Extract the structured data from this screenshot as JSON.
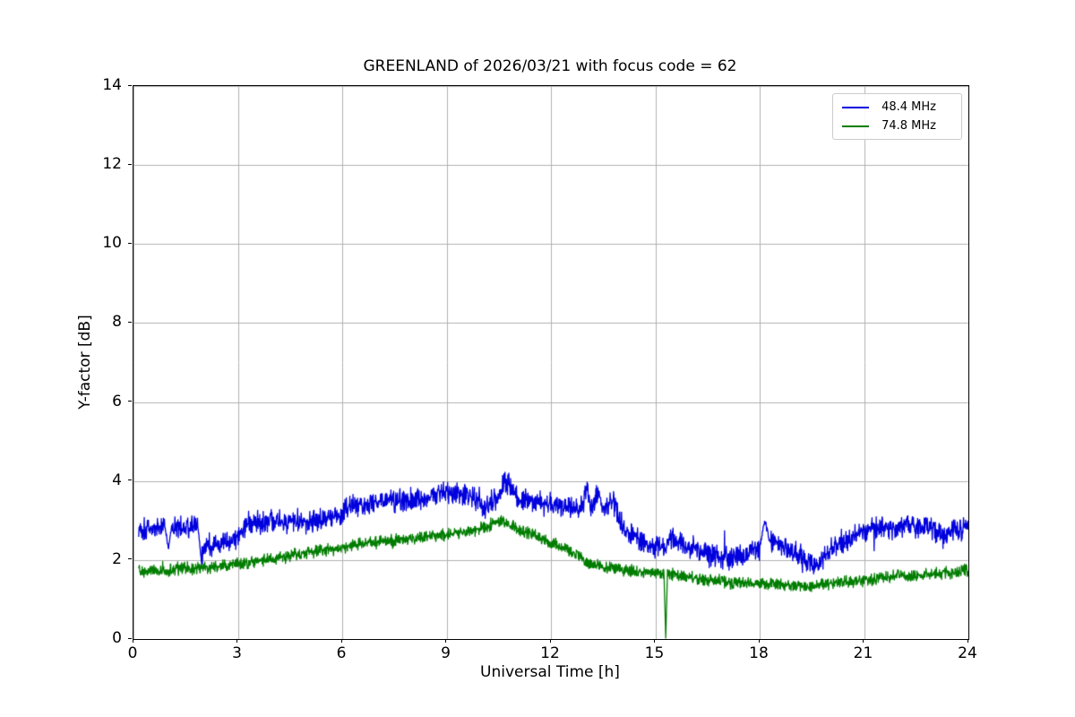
{
  "chart_data": {
    "type": "line",
    "title": "GREENLAND of 2026/03/21 with focus code = 62",
    "xlabel": "Universal Time [h]",
    "ylabel": "Y-factor [dB]",
    "xlim": [
      0,
      24
    ],
    "ylim": [
      0,
      14
    ],
    "xticks": [
      0,
      3,
      6,
      9,
      12,
      15,
      18,
      21,
      24
    ],
    "yticks": [
      0,
      2,
      4,
      6,
      8,
      10,
      12,
      14
    ],
    "grid": true,
    "grid_color": "#b0b0b0",
    "legend_position": "upper right",
    "series": [
      {
        "name": "48.4 MHz",
        "color": "#0000dd",
        "noise_amplitude": 0.17,
        "anchors": [
          [
            0.15,
            2.8
          ],
          [
            0.5,
            2.8
          ],
          [
            0.9,
            2.85
          ],
          [
            1.0,
            2.3
          ],
          [
            1.1,
            2.85
          ],
          [
            1.5,
            2.8
          ],
          [
            1.85,
            2.85
          ],
          [
            1.95,
            2.0
          ],
          [
            2.05,
            2.4
          ],
          [
            2.3,
            2.35
          ],
          [
            2.6,
            2.4
          ],
          [
            2.9,
            2.55
          ],
          [
            3.1,
            2.7
          ],
          [
            3.3,
            2.95
          ],
          [
            3.5,
            3.0
          ],
          [
            3.7,
            2.9
          ],
          [
            3.9,
            3.0
          ],
          [
            4.2,
            2.95
          ],
          [
            4.5,
            3.0
          ],
          [
            4.8,
            3.05
          ],
          [
            5.1,
            3.0
          ],
          [
            5.4,
            3.05
          ],
          [
            5.7,
            3.1
          ],
          [
            5.95,
            3.1
          ],
          [
            6.05,
            3.35
          ],
          [
            6.4,
            3.4
          ],
          [
            6.8,
            3.45
          ],
          [
            7.2,
            3.5
          ],
          [
            7.6,
            3.5
          ],
          [
            8.0,
            3.55
          ],
          [
            8.4,
            3.6
          ],
          [
            8.7,
            3.7
          ],
          [
            9.0,
            3.75
          ],
          [
            9.3,
            3.7
          ],
          [
            9.6,
            3.65
          ],
          [
            9.9,
            3.5
          ],
          [
            10.1,
            3.3
          ],
          [
            10.3,
            3.5
          ],
          [
            10.5,
            3.6
          ],
          [
            10.65,
            4.0
          ],
          [
            10.8,
            3.95
          ],
          [
            11.0,
            3.6
          ],
          [
            11.3,
            3.5
          ],
          [
            11.7,
            3.45
          ],
          [
            12.0,
            3.4
          ],
          [
            12.4,
            3.35
          ],
          [
            12.8,
            3.3
          ],
          [
            13.05,
            3.75
          ],
          [
            13.15,
            3.3
          ],
          [
            13.35,
            3.65
          ],
          [
            13.5,
            3.35
          ],
          [
            13.75,
            3.55
          ],
          [
            13.9,
            3.2
          ],
          [
            14.1,
            2.8
          ],
          [
            14.4,
            2.6
          ],
          [
            14.7,
            2.45
          ],
          [
            15.0,
            2.35
          ],
          [
            15.3,
            2.3
          ],
          [
            15.5,
            2.55
          ],
          [
            15.7,
            2.4
          ],
          [
            16.0,
            2.3
          ],
          [
            16.4,
            2.2
          ],
          [
            16.8,
            2.1
          ],
          [
            17.1,
            2.05
          ],
          [
            17.4,
            2.1
          ],
          [
            17.7,
            2.2
          ],
          [
            18.0,
            2.3
          ],
          [
            18.15,
            3.0
          ],
          [
            18.3,
            2.45
          ],
          [
            18.6,
            2.35
          ],
          [
            18.9,
            2.3
          ],
          [
            19.2,
            2.1
          ],
          [
            19.5,
            1.85
          ],
          [
            19.8,
            2.05
          ],
          [
            20.1,
            2.35
          ],
          [
            20.4,
            2.5
          ],
          [
            20.7,
            2.6
          ],
          [
            21.0,
            2.75
          ],
          [
            21.4,
            2.85
          ],
          [
            21.8,
            2.8
          ],
          [
            22.2,
            2.9
          ],
          [
            22.6,
            2.85
          ],
          [
            23.0,
            2.75
          ],
          [
            23.3,
            2.6
          ],
          [
            23.6,
            2.8
          ],
          [
            24.0,
            2.8
          ]
        ]
      },
      {
        "name": "74.8 MHz",
        "color": "#007d00",
        "noise_amplitude": 0.09,
        "anchors": [
          [
            0.15,
            1.75
          ],
          [
            0.5,
            1.7
          ],
          [
            1.0,
            1.75
          ],
          [
            1.5,
            1.8
          ],
          [
            2.0,
            1.8
          ],
          [
            2.5,
            1.85
          ],
          [
            3.0,
            1.9
          ],
          [
            3.5,
            1.95
          ],
          [
            4.0,
            2.05
          ],
          [
            4.5,
            2.1
          ],
          [
            5.0,
            2.2
          ],
          [
            5.5,
            2.25
          ],
          [
            6.0,
            2.3
          ],
          [
            6.5,
            2.4
          ],
          [
            7.0,
            2.45
          ],
          [
            7.5,
            2.5
          ],
          [
            8.0,
            2.55
          ],
          [
            8.5,
            2.6
          ],
          [
            9.0,
            2.65
          ],
          [
            9.5,
            2.7
          ],
          [
            10.0,
            2.8
          ],
          [
            10.4,
            2.95
          ],
          [
            10.6,
            3.0
          ],
          [
            10.8,
            2.9
          ],
          [
            11.0,
            2.8
          ],
          [
            11.3,
            2.7
          ],
          [
            11.6,
            2.6
          ],
          [
            12.0,
            2.45
          ],
          [
            12.4,
            2.3
          ],
          [
            12.8,
            2.1
          ],
          [
            13.0,
            1.9
          ],
          [
            13.2,
            1.85
          ],
          [
            13.5,
            1.85
          ],
          [
            13.8,
            1.8
          ],
          [
            14.2,
            1.75
          ],
          [
            14.6,
            1.7
          ],
          [
            15.0,
            1.7
          ],
          [
            15.25,
            1.65
          ],
          [
            15.3,
            0.05
          ],
          [
            15.35,
            1.65
          ],
          [
            15.7,
            1.6
          ],
          [
            16.0,
            1.55
          ],
          [
            16.5,
            1.5
          ],
          [
            17.0,
            1.45
          ],
          [
            17.5,
            1.4
          ],
          [
            18.0,
            1.4
          ],
          [
            18.5,
            1.38
          ],
          [
            19.0,
            1.35
          ],
          [
            19.5,
            1.35
          ],
          [
            20.0,
            1.4
          ],
          [
            20.5,
            1.45
          ],
          [
            21.0,
            1.5
          ],
          [
            21.5,
            1.55
          ],
          [
            22.0,
            1.6
          ],
          [
            22.5,
            1.6
          ],
          [
            23.0,
            1.65
          ],
          [
            23.5,
            1.7
          ],
          [
            24.0,
            1.75
          ]
        ]
      }
    ]
  }
}
